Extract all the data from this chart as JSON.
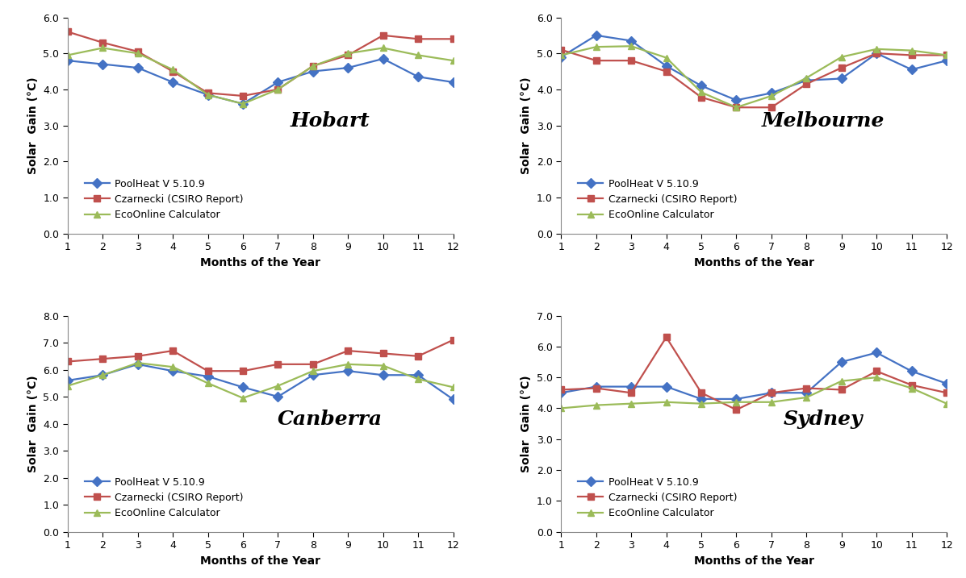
{
  "months": [
    1,
    2,
    3,
    4,
    5,
    6,
    7,
    8,
    9,
    10,
    11,
    12
  ],
  "city_order": [
    [
      "Hobart",
      "Melbourne"
    ],
    [
      "Canberra",
      "Sydney"
    ]
  ],
  "ylims": {
    "Hobart": [
      0.0,
      6.0
    ],
    "Melbourne": [
      0.0,
      6.0
    ],
    "Canberra": [
      0.0,
      8.0
    ],
    "Sydney": [
      0.0,
      7.0
    ]
  },
  "yticks": {
    "Hobart": [
      0.0,
      1.0,
      2.0,
      3.0,
      4.0,
      5.0,
      6.0
    ],
    "Melbourne": [
      0.0,
      1.0,
      2.0,
      3.0,
      4.0,
      5.0,
      6.0
    ],
    "Canberra": [
      0.0,
      1.0,
      2.0,
      3.0,
      4.0,
      5.0,
      6.0,
      7.0,
      8.0
    ],
    "Sydney": [
      0.0,
      1.0,
      2.0,
      3.0,
      4.0,
      5.0,
      6.0,
      7.0
    ]
  },
  "data": {
    "Hobart": {
      "poolheat": [
        4.8,
        4.7,
        4.6,
        4.2,
        3.85,
        3.6,
        4.2,
        4.5,
        4.6,
        4.85,
        4.35,
        4.2
      ],
      "czarnecki": [
        5.6,
        5.3,
        5.05,
        4.5,
        3.9,
        3.82,
        4.0,
        4.65,
        4.95,
        5.5,
        5.4,
        5.4
      ],
      "ecoonline": [
        4.95,
        5.15,
        5.0,
        4.55,
        3.85,
        3.6,
        4.0,
        4.65,
        5.0,
        5.15,
        4.95,
        4.8
      ]
    },
    "Melbourne": {
      "poolheat": [
        4.9,
        5.5,
        5.35,
        4.65,
        4.1,
        3.7,
        3.9,
        4.25,
        4.3,
        5.0,
        4.55,
        4.8
      ],
      "czarnecki": [
        5.1,
        4.8,
        4.8,
        4.5,
        3.78,
        3.5,
        3.5,
        4.15,
        4.6,
        5.0,
        4.95,
        4.95
      ],
      "ecoonline": [
        4.95,
        5.18,
        5.2,
        4.88,
        3.92,
        3.5,
        3.82,
        4.32,
        4.9,
        5.12,
        5.08,
        4.95
      ]
    },
    "Canberra": {
      "poolheat": [
        5.6,
        5.8,
        6.2,
        5.95,
        5.75,
        5.35,
        5.0,
        5.8,
        5.95,
        5.8,
        5.8,
        4.9
      ],
      "czarnecki": [
        6.3,
        6.4,
        6.5,
        6.7,
        5.95,
        5.95,
        6.2,
        6.2,
        6.7,
        6.6,
        6.5,
        7.1
      ],
      "ecoonline": [
        5.4,
        5.8,
        6.25,
        6.1,
        5.5,
        4.95,
        5.4,
        5.95,
        6.2,
        6.15,
        5.65,
        5.35
      ]
    },
    "Sydney": {
      "poolheat": [
        4.5,
        4.7,
        4.7,
        4.7,
        4.3,
        4.3,
        4.5,
        4.5,
        5.5,
        5.8,
        5.2,
        4.8
      ],
      "czarnecki": [
        4.6,
        4.65,
        4.5,
        6.3,
        4.5,
        3.95,
        4.5,
        4.65,
        4.6,
        5.2,
        4.75,
        4.5
      ],
      "ecoonline": [
        4.0,
        4.1,
        4.15,
        4.2,
        4.15,
        4.2,
        4.2,
        4.35,
        4.88,
        5.0,
        4.65,
        4.15
      ]
    }
  },
  "colors": {
    "poolheat": "#4472C4",
    "czarnecki": "#C0504D",
    "ecoonline": "#9BBB59"
  },
  "markers": {
    "poolheat": "D",
    "czarnecki": "s",
    "ecoonline": "^"
  },
  "legend_labels": {
    "poolheat": "PoolHeat V 5.10.9",
    "czarnecki": "Czarnecki (CSIRO Report)",
    "ecoonline": "EcoOnline Calculator"
  },
  "ylabel": "Solar  Gain (°C)",
  "xlabel": "Months of the Year",
  "background_color": "#FFFFFF",
  "title_fontsize": 18,
  "label_fontsize": 10,
  "tick_fontsize": 9,
  "legend_fontsize": 9,
  "line_width": 1.6,
  "marker_size": 6
}
